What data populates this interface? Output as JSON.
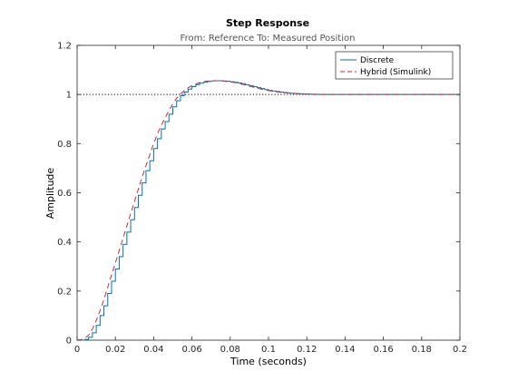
{
  "chart_data": {
    "type": "line",
    "title": "Step Response",
    "subtitle": "From: Reference  To: Measured Position",
    "xlabel": "Time (seconds)",
    "ylabel": "Amplitude",
    "xlim": [
      0,
      0.2
    ],
    "ylim": [
      0,
      1.2
    ],
    "xticks": [
      0,
      0.02,
      0.04,
      0.06,
      0.08,
      0.1,
      0.12,
      0.14,
      0.16,
      0.18,
      0.2
    ],
    "yticks": [
      0,
      0.2,
      0.4,
      0.6,
      0.8,
      1,
      1.2
    ],
    "xtick_labels": [
      "0",
      "0.02",
      "0.04",
      "0.06",
      "0.08",
      "0.1",
      "0.12",
      "0.14",
      "0.16",
      "0.18",
      "0.2"
    ],
    "ytick_labels": [
      "0",
      "0.2",
      "0.4",
      "0.6",
      "0.8",
      "1",
      "1.2"
    ],
    "grid": false,
    "legend_position": "top-right",
    "reference_line": {
      "y": 1,
      "style": "dotted",
      "color": "#000000"
    },
    "series": [
      {
        "name": "Discrete",
        "style": "staircase",
        "color": "#0072bd",
        "x": [
          0,
          0.002,
          0.004,
          0.006,
          0.008,
          0.01,
          0.012,
          0.014,
          0.016,
          0.018,
          0.02,
          0.022,
          0.024,
          0.026,
          0.028,
          0.03,
          0.032,
          0.034,
          0.036,
          0.038,
          0.04,
          0.042,
          0.044,
          0.046,
          0.048,
          0.05,
          0.052,
          0.054,
          0.056,
          0.058,
          0.06,
          0.062,
          0.064,
          0.066,
          0.068,
          0.07,
          0.072,
          0.074,
          0.076,
          0.078,
          0.08,
          0.082,
          0.084,
          0.086,
          0.088,
          0.09,
          0.092,
          0.094,
          0.096,
          0.098,
          0.1,
          0.102,
          0.104,
          0.106,
          0.108,
          0.11,
          0.112,
          0.114,
          0.116,
          0.118,
          0.12,
          0.122,
          0.124,
          0.126,
          0.128,
          0.13,
          0.132,
          0.134,
          0.2
        ],
        "y": [
          0,
          0,
          0.003,
          0.012,
          0.03,
          0.06,
          0.1,
          0.14,
          0.19,
          0.24,
          0.29,
          0.34,
          0.39,
          0.44,
          0.49,
          0.54,
          0.59,
          0.64,
          0.69,
          0.73,
          0.78,
          0.82,
          0.86,
          0.89,
          0.92,
          0.95,
          0.975,
          0.995,
          1.01,
          1.022,
          1.032,
          1.04,
          1.046,
          1.05,
          1.053,
          1.055,
          1.056,
          1.056,
          1.055,
          1.054,
          1.052,
          1.05,
          1.047,
          1.044,
          1.04,
          1.036,
          1.032,
          1.028,
          1.024,
          1.02,
          1.017,
          1.014,
          1.012,
          1.01,
          1.008,
          1.006,
          1.005,
          1.004,
          1.003,
          1.002,
          1.002,
          1.001,
          1.001,
          1.0,
          1.0,
          1.0,
          1.0,
          1.0,
          1.0
        ]
      },
      {
        "name": "Hybrid (Simulink)",
        "style": "dashed",
        "color": "#d62728",
        "x": [
          0,
          0.002,
          0.004,
          0.006,
          0.008,
          0.01,
          0.012,
          0.014,
          0.016,
          0.018,
          0.02,
          0.022,
          0.024,
          0.026,
          0.028,
          0.03,
          0.032,
          0.034,
          0.036,
          0.038,
          0.04,
          0.042,
          0.044,
          0.046,
          0.048,
          0.05,
          0.052,
          0.054,
          0.056,
          0.058,
          0.06,
          0.062,
          0.064,
          0.066,
          0.068,
          0.07,
          0.072,
          0.074,
          0.076,
          0.078,
          0.08,
          0.082,
          0.084,
          0.086,
          0.088,
          0.09,
          0.092,
          0.094,
          0.096,
          0.098,
          0.1,
          0.102,
          0.104,
          0.106,
          0.108,
          0.11,
          0.112,
          0.114,
          0.116,
          0.118,
          0.12,
          0.122,
          0.124,
          0.126,
          0.128,
          0.13,
          0.132,
          0.134,
          0.2
        ],
        "y": [
          0,
          0.002,
          0.008,
          0.02,
          0.045,
          0.08,
          0.12,
          0.165,
          0.215,
          0.265,
          0.315,
          0.365,
          0.415,
          0.465,
          0.515,
          0.565,
          0.615,
          0.665,
          0.71,
          0.755,
          0.8,
          0.84,
          0.875,
          0.905,
          0.935,
          0.962,
          0.985,
          1.002,
          1.016,
          1.027,
          1.036,
          1.043,
          1.048,
          1.052,
          1.054,
          1.056,
          1.056,
          1.056,
          1.055,
          1.053,
          1.051,
          1.049,
          1.046,
          1.042,
          1.038,
          1.034,
          1.03,
          1.026,
          1.022,
          1.019,
          1.016,
          1.013,
          1.011,
          1.009,
          1.007,
          1.006,
          1.005,
          1.004,
          1.003,
          1.002,
          1.001,
          1.001,
          1.0,
          1.0,
          1.0,
          1.0,
          1.0,
          1.0,
          1.0
        ]
      }
    ]
  }
}
